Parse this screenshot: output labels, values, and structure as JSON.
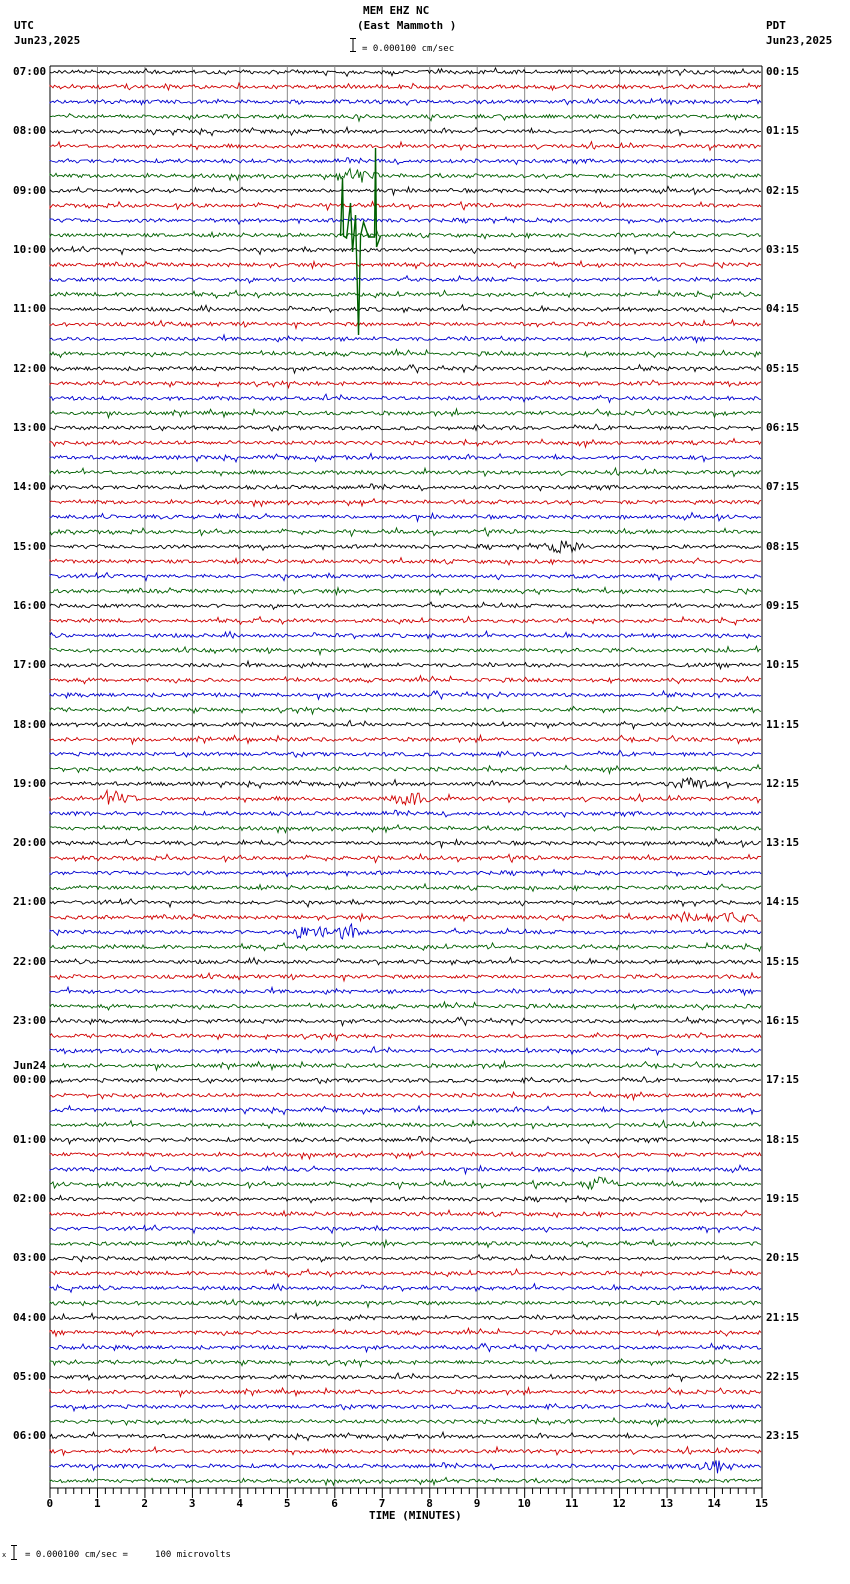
{
  "header": {
    "station": "MEM EHZ NC",
    "location": "(East Mammoth )",
    "scale_text": "= 0.000100 cm/sec",
    "left_tz": "UTC",
    "left_date": "Jun23,2025",
    "right_tz": "PDT",
    "right_date": "Jun23,2025"
  },
  "footer": {
    "scale_text": "= 0.000100 cm/sec =     100 microvolts",
    "scale_prefix": "x"
  },
  "chart_data": {
    "type": "line",
    "title": "MEM EHZ NC (East Mammoth ) helicorder",
    "subtitle": "= 0.000100 cm/sec",
    "xlabel": "TIME (MINUTES)",
    "ylabel": "",
    "x_ticks": [
      "0",
      "1",
      "2",
      "3",
      "4",
      "5",
      "6",
      "7",
      "8",
      "9",
      "10",
      "11",
      "12",
      "13",
      "14",
      "15"
    ],
    "xlim": [
      0,
      15
    ],
    "grid": true,
    "left_labels": [
      "07:00",
      "08:00",
      "09:00",
      "10:00",
      "11:00",
      "12:00",
      "13:00",
      "14:00",
      "15:00",
      "16:00",
      "17:00",
      "18:00",
      "19:00",
      "20:00",
      "21:00",
      "22:00",
      "23:00",
      "00:00",
      "01:00",
      "02:00",
      "03:00",
      "04:00",
      "05:00",
      "06:00"
    ],
    "left_date_change": {
      "label": "Jun24",
      "before": "00:00"
    },
    "right_labels": [
      "00:15",
      "01:15",
      "02:15",
      "03:15",
      "04:15",
      "05:15",
      "06:15",
      "07:15",
      "08:15",
      "09:15",
      "10:15",
      "11:15",
      "12:15",
      "13:15",
      "14:15",
      "15:15",
      "16:15",
      "17:15",
      "18:15",
      "19:15",
      "20:15",
      "21:15",
      "22:15",
      "23:15"
    ],
    "traces_per_hour": 4,
    "trace_colors": [
      "#000000",
      "#d00000",
      "#0000d0",
      "#006000"
    ],
    "trace_count": 96,
    "notable_events": [
      {
        "trace": 7,
        "minute": 6.5,
        "color": "green",
        "desc": "large spike / glitch spanning several traces"
      },
      {
        "trace": 32,
        "minute": 10.8,
        "color": "red",
        "desc": "local event burst"
      },
      {
        "trace": 49,
        "minute": 1.4,
        "color": "red",
        "desc": "burst"
      },
      {
        "trace": 49,
        "minute": 7.6,
        "color": "red",
        "desc": "burst"
      },
      {
        "trace": 48,
        "minute": 13.5,
        "color": "black",
        "desc": "burst"
      },
      {
        "trace": 57,
        "minute": 13.5,
        "color": "red",
        "desc": "sustained noise"
      },
      {
        "trace": 58,
        "minute": 5.5,
        "color": "blue",
        "desc": "burst"
      },
      {
        "trace": 58,
        "minute": 6.3,
        "color": "blue",
        "desc": "burst"
      },
      {
        "trace": 75,
        "minute": 11.6,
        "color": "green",
        "desc": "burst"
      },
      {
        "trace": 94,
        "minute": 14.0,
        "color": "blue",
        "desc": "burst"
      }
    ]
  }
}
